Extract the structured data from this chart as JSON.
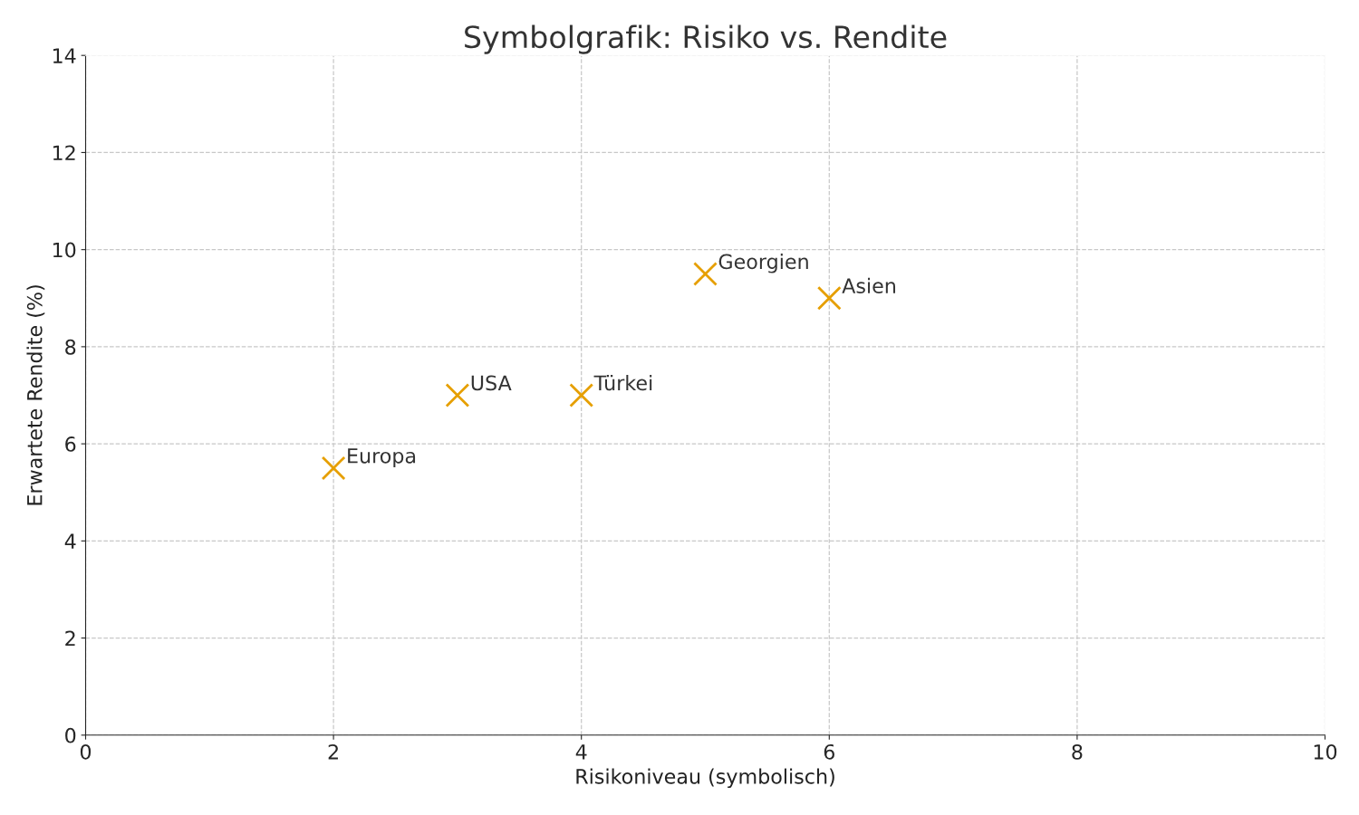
{
  "chart_data": {
    "type": "scatter",
    "title": "Symbolgrafik: Risiko vs. Rendite",
    "xlabel": "Risikoniveau (symbolisch)",
    "ylabel": "Erwartete Rendite (%)",
    "x": [
      2,
      3,
      4,
      5,
      6
    ],
    "series": [
      {
        "color": "#e69f00",
        "values": [
          5.5,
          7,
          7,
          9.5,
          9
        ]
      }
    ],
    "annotations": [
      {
        "text": "Europa",
        "x": 2,
        "y": 5.5
      },
      {
        "text": "USA",
        "x": 3,
        "y": 7
      },
      {
        "text": "Türkei",
        "x": 4,
        "y": 7
      },
      {
        "text": "Georgien",
        "x": 5,
        "y": 9.5
      },
      {
        "text": "Asien",
        "x": 6,
        "y": 9
      }
    ],
    "xlim": [
      0,
      10
    ],
    "xticks": [
      0,
      2,
      4,
      6,
      8,
      10
    ],
    "ylim": [
      0,
      14
    ],
    "yticks": [
      0,
      2,
      4,
      6,
      8,
      10,
      12,
      14
    ],
    "grid": true,
    "marker": "cross",
    "legend": false
  }
}
